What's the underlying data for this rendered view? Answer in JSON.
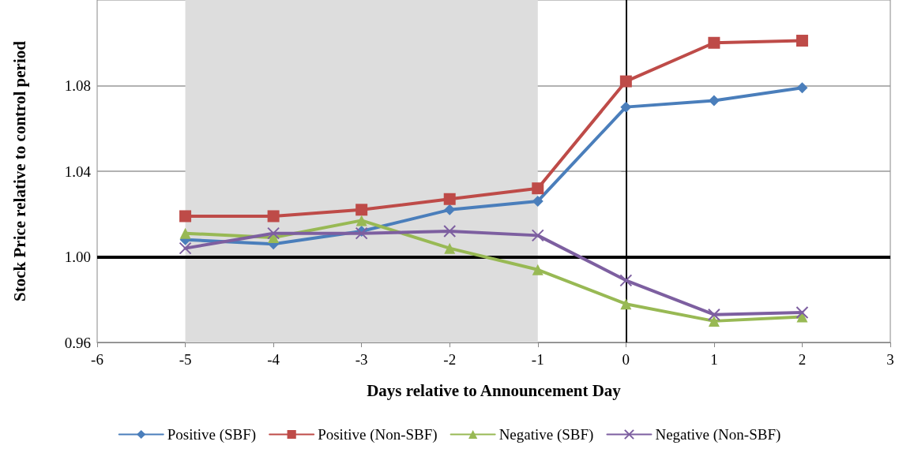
{
  "chart_data": {
    "type": "line",
    "xlabel": "Days relative to Announcement Day",
    "ylabel": "Stock Price relative to control period",
    "x": [
      -5,
      -4,
      -3,
      -2,
      -1,
      0,
      1,
      2
    ],
    "series": [
      {
        "name": "Positive (SBF)",
        "color": "#4a7ebb",
        "marker": "diamond",
        "values": [
          1.008,
          1.006,
          1.012,
          1.022,
          1.026,
          1.07,
          1.073,
          1.079
        ]
      },
      {
        "name": "Positive (Non-SBF)",
        "color": "#be4b48",
        "marker": "square",
        "values": [
          1.019,
          1.019,
          1.022,
          1.027,
          1.032,
          1.082,
          1.1,
          1.101
        ]
      },
      {
        "name": "Negative (SBF)",
        "color": "#98b954",
        "marker": "triangle",
        "values": [
          1.011,
          1.009,
          1.017,
          1.004,
          0.994,
          0.978,
          0.97,
          0.972
        ]
      },
      {
        "name": "Negative (Non-SBF)",
        "color": "#7d5fa0",
        "marker": "cross",
        "values": [
          1.004,
          1.011,
          1.011,
          1.012,
          1.01,
          0.989,
          0.973,
          0.974
        ]
      }
    ],
    "xlim": [
      -6,
      3
    ],
    "xticks": [
      -6,
      -5,
      -4,
      -3,
      -2,
      -1,
      0,
      1,
      2,
      3
    ],
    "ylim": [
      0.96,
      1.12
    ],
    "yticks": [
      {
        "value": 0.96,
        "label": "0.96"
      },
      {
        "value": 1.0,
        "label": "1.00"
      },
      {
        "value": 1.04,
        "label": "1.04"
      },
      {
        "value": 1.08,
        "label": "1.08"
      }
    ],
    "grid": "y",
    "legend": "bottom",
    "line_style": "solid",
    "ref_lines": [
      {
        "axis": "y",
        "value": 1.0,
        "color": "#000000"
      },
      {
        "axis": "x",
        "value": 0,
        "color": "#000000"
      }
    ],
    "bands": [
      {
        "axis": "x",
        "from": -5,
        "to": -1,
        "color": "#dddddd"
      }
    ]
  }
}
